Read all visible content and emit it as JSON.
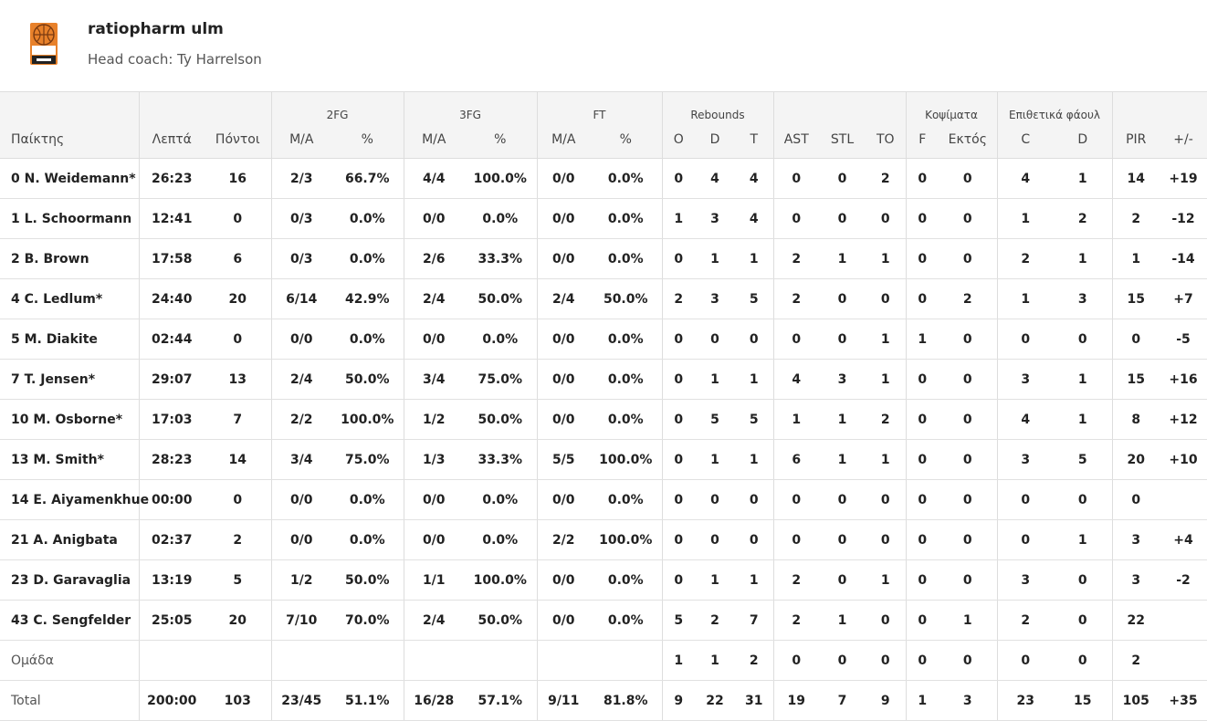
{
  "team": {
    "name": "ratiopharm ulm",
    "coach": "Head coach: Ty Harrelson",
    "logo_icon": "team-logo-icon",
    "logo_text": "ratiopharm ulm"
  },
  "groups": {
    "fg2": "2FG",
    "fg3": "3FG",
    "ft": "FT",
    "rebounds": "Rebounds",
    "blocks": "Κοψίματα",
    "fouls": "Επιθετικά φάουλ"
  },
  "columns": {
    "player": "Παίκτης",
    "minutes": "Λεπτά",
    "points": "Πόντοι",
    "fg2_ma": "M/A",
    "fg2_pct": "%",
    "fg3_ma": "M/A",
    "fg3_pct": "%",
    "ft_ma": "M/A",
    "ft_pct": "%",
    "reb_o": "O",
    "reb_d": "D",
    "reb_t": "T",
    "ast": "AST",
    "stl": "STL",
    "to": "TO",
    "blk_f": "F",
    "blk_against": "Εκτός",
    "foul_c": "C",
    "foul_d": "D",
    "pir": "PIR",
    "pm": "+/-"
  },
  "rows": [
    [
      "0 N. Weidemann*",
      "26:23",
      "16",
      "2/3",
      "66.7%",
      "4/4",
      "100.0%",
      "0/0",
      "0.0%",
      "0",
      "4",
      "4",
      "0",
      "0",
      "2",
      "0",
      "0",
      "4",
      "1",
      "14",
      "+19"
    ],
    [
      "1 L. Schoormann",
      "12:41",
      "0",
      "0/3",
      "0.0%",
      "0/0",
      "0.0%",
      "0/0",
      "0.0%",
      "1",
      "3",
      "4",
      "0",
      "0",
      "0",
      "0",
      "0",
      "1",
      "2",
      "2",
      "-12"
    ],
    [
      "2 B. Brown",
      "17:58",
      "6",
      "0/3",
      "0.0%",
      "2/6",
      "33.3%",
      "0/0",
      "0.0%",
      "0",
      "1",
      "1",
      "2",
      "1",
      "1",
      "0",
      "0",
      "2",
      "1",
      "1",
      "-14"
    ],
    [
      "4 C. Ledlum*",
      "24:40",
      "20",
      "6/14",
      "42.9%",
      "2/4",
      "50.0%",
      "2/4",
      "50.0%",
      "2",
      "3",
      "5",
      "2",
      "0",
      "0",
      "0",
      "2",
      "1",
      "3",
      "15",
      "+7"
    ],
    [
      "5 M. Diakite",
      "02:44",
      "0",
      "0/0",
      "0.0%",
      "0/0",
      "0.0%",
      "0/0",
      "0.0%",
      "0",
      "0",
      "0",
      "0",
      "0",
      "1",
      "1",
      "0",
      "0",
      "0",
      "0",
      "-5"
    ],
    [
      "7 T. Jensen*",
      "29:07",
      "13",
      "2/4",
      "50.0%",
      "3/4",
      "75.0%",
      "0/0",
      "0.0%",
      "0",
      "1",
      "1",
      "4",
      "3",
      "1",
      "0",
      "0",
      "3",
      "1",
      "15",
      "+16"
    ],
    [
      "10 M. Osborne*",
      "17:03",
      "7",
      "2/2",
      "100.0%",
      "1/2",
      "50.0%",
      "0/0",
      "0.0%",
      "0",
      "5",
      "5",
      "1",
      "1",
      "2",
      "0",
      "0",
      "4",
      "1",
      "8",
      "+12"
    ],
    [
      "13 M. Smith*",
      "28:23",
      "14",
      "3/4",
      "75.0%",
      "1/3",
      "33.3%",
      "5/5",
      "100.0%",
      "0",
      "1",
      "1",
      "6",
      "1",
      "1",
      "0",
      "0",
      "3",
      "5",
      "20",
      "+10"
    ],
    [
      "14 E. Aiyamenkhue",
      "00:00",
      "0",
      "0/0",
      "0.0%",
      "0/0",
      "0.0%",
      "0/0",
      "0.0%",
      "0",
      "0",
      "0",
      "0",
      "0",
      "0",
      "0",
      "0",
      "0",
      "0",
      "0",
      ""
    ],
    [
      "21 A. Anigbata",
      "02:37",
      "2",
      "0/0",
      "0.0%",
      "0/0",
      "0.0%",
      "2/2",
      "100.0%",
      "0",
      "0",
      "0",
      "0",
      "0",
      "0",
      "0",
      "0",
      "0",
      "1",
      "3",
      "+4"
    ],
    [
      "23 D. Garavaglia",
      "13:19",
      "5",
      "1/2",
      "50.0%",
      "1/1",
      "100.0%",
      "0/0",
      "0.0%",
      "0",
      "1",
      "1",
      "2",
      "0",
      "1",
      "0",
      "0",
      "3",
      "0",
      "3",
      "-2"
    ],
    [
      "43 C. Sengfelder",
      "25:05",
      "20",
      "7/10",
      "70.0%",
      "2/4",
      "50.0%",
      "0/0",
      "0.0%",
      "5",
      "2",
      "7",
      "2",
      "1",
      "0",
      "0",
      "1",
      "2",
      "0",
      "22",
      ""
    ],
    [
      "Ομάδα",
      "",
      "",
      "",
      "",
      "",
      "",
      "",
      "",
      "1",
      "1",
      "2",
      "0",
      "0",
      "0",
      "0",
      "0",
      "0",
      "0",
      "2",
      ""
    ],
    [
      "Total",
      "200:00",
      "103",
      "23/45",
      "51.1%",
      "16/28",
      "57.1%",
      "9/11",
      "81.8%",
      "9",
      "22",
      "31",
      "19",
      "7",
      "9",
      "1",
      "3",
      "23",
      "15",
      "105",
      "+35"
    ]
  ]
}
